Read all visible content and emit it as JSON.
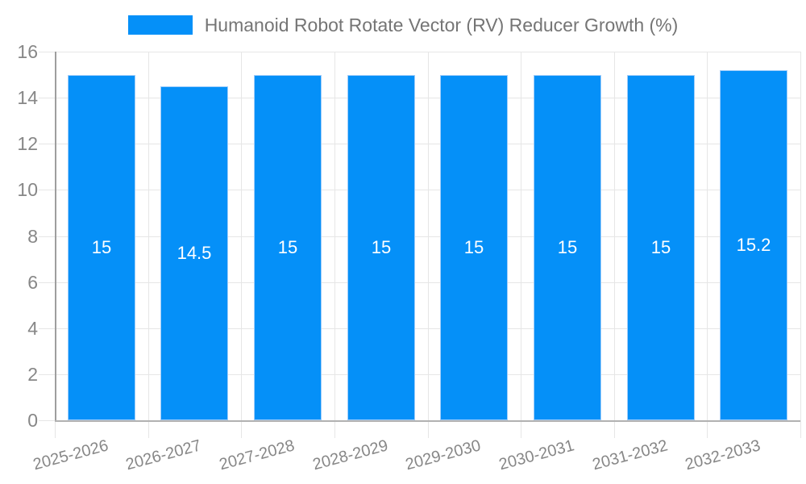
{
  "chart_data": {
    "type": "bar",
    "title": "Humanoid Robot Rotate Vector (RV) Reducer Growth (%)",
    "legend_position": "top",
    "categories": [
      "2025-2026",
      "2026-2027",
      "2027-2028",
      "2028-2029",
      "2029-2030",
      "2030-2031",
      "2031-2032",
      "2032-2033"
    ],
    "values": [
      15,
      14.5,
      15,
      15,
      15,
      15,
      15,
      15.2
    ],
    "bar_labels": [
      "15",
      "14.5",
      "15",
      "15",
      "15",
      "15",
      "15",
      "15.2"
    ],
    "xlabel": "",
    "ylabel": "",
    "ylim": [
      0,
      16
    ],
    "yticks": [
      0,
      2,
      4,
      6,
      8,
      10,
      12,
      14,
      16
    ],
    "grid": true,
    "colors": {
      "bar": "#0590f8",
      "bar_edge": "#a0cdfa",
      "bar_label": "#ffffff",
      "legend_text": "#757575",
      "axis_text": "#878787",
      "grid_line": "#e6e6e6",
      "y_axis_line": "#9e9e9e",
      "x_axis_line": "#b2b2b2"
    }
  }
}
